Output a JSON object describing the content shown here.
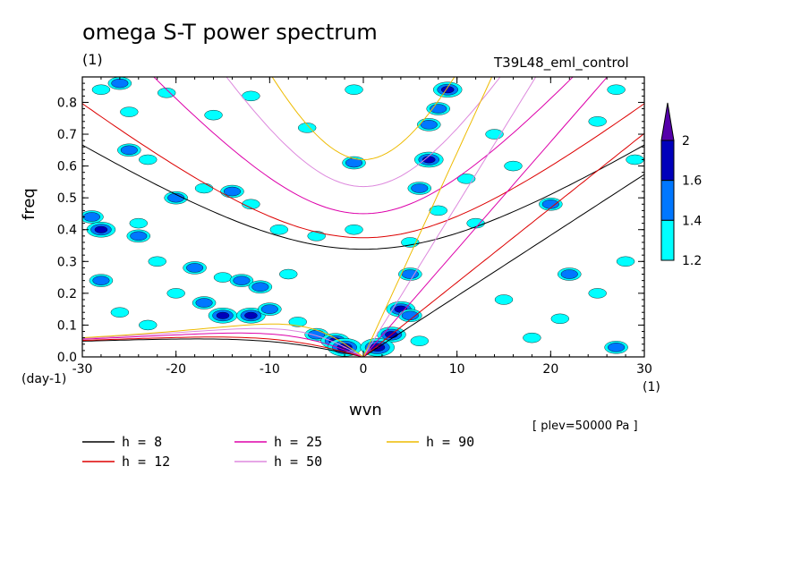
{
  "header": {
    "title": "omega S-T power spectrum",
    "units": "(1)",
    "run_name": "T39L48_eml_control"
  },
  "footer": {
    "xlabel": "wvn",
    "yunits": "(day-1)",
    "xunits": "(1)",
    "level": "[ plev=50000 Pa ]"
  },
  "colors": {
    "h8": "#000000",
    "h12": "#dd0000",
    "h25": "#dd00aa",
    "h50": "#dd88dd",
    "h90": "#eebb00",
    "band1": "#00ffff",
    "band2": "#0077ff",
    "band3": "#0000bb",
    "band4": "#5500aa"
  },
  "chart_data": {
    "type": "heatmap",
    "title": "omega S-T power spectrum",
    "xlabel": "wvn",
    "ylabel": "freq",
    "xlim": [
      -30,
      30
    ],
    "ylim": [
      0,
      0.88
    ],
    "xticks": [
      -30,
      -20,
      -10,
      0,
      10,
      20,
      30
    ],
    "yticks": [
      0.0,
      0.1,
      0.2,
      0.3,
      0.4,
      0.5,
      0.6,
      0.7,
      0.8
    ],
    "colorbar": {
      "levels": [
        1.2,
        1.4,
        1.6,
        2
      ],
      "labels": [
        "1.2",
        "1.4",
        "1.6",
        "2"
      ]
    },
    "dispersion_curves": [
      {
        "label": "h =  8",
        "h": 8,
        "color_key": "h8"
      },
      {
        "label": "h = 12",
        "h": 12,
        "color_key": "h12"
      },
      {
        "label": "h = 25",
        "h": 25,
        "color_key": "h25"
      },
      {
        "label": "h = 50",
        "h": 50,
        "color_key": "h50"
      },
      {
        "label": "h = 90",
        "h": 90,
        "color_key": "h90"
      }
    ],
    "blobs": [
      {
        "x": -28,
        "y": 0.84,
        "level": 1
      },
      {
        "x": -26,
        "y": 0.86,
        "level": 2
      },
      {
        "x": -25,
        "y": 0.65,
        "level": 2
      },
      {
        "x": -23,
        "y": 0.62,
        "level": 1
      },
      {
        "x": -29,
        "y": 0.44,
        "level": 2
      },
      {
        "x": -28,
        "y": 0.4,
        "level": 3
      },
      {
        "x": -24,
        "y": 0.42,
        "level": 1
      },
      {
        "x": -20,
        "y": 0.5,
        "level": 2
      },
      {
        "x": -17,
        "y": 0.53,
        "level": 1
      },
      {
        "x": -14,
        "y": 0.52,
        "level": 2
      },
      {
        "x": -12,
        "y": 0.48,
        "level": 1
      },
      {
        "x": -9,
        "y": 0.4,
        "level": 1
      },
      {
        "x": -5,
        "y": 0.38,
        "level": 1
      },
      {
        "x": -24,
        "y": 0.38,
        "level": 2
      },
      {
        "x": -22,
        "y": 0.3,
        "level": 1
      },
      {
        "x": -18,
        "y": 0.28,
        "level": 2
      },
      {
        "x": -15,
        "y": 0.25,
        "level": 1
      },
      {
        "x": -13,
        "y": 0.24,
        "level": 2
      },
      {
        "x": -11,
        "y": 0.22,
        "level": 2
      },
      {
        "x": -8,
        "y": 0.26,
        "level": 1
      },
      {
        "x": -20,
        "y": 0.2,
        "level": 1
      },
      {
        "x": -17,
        "y": 0.17,
        "level": 2
      },
      {
        "x": -15,
        "y": 0.13,
        "level": 3
      },
      {
        "x": -12,
        "y": 0.13,
        "level": 3
      },
      {
        "x": -10,
        "y": 0.15,
        "level": 2
      },
      {
        "x": -7,
        "y": 0.11,
        "level": 1
      },
      {
        "x": -5,
        "y": 0.07,
        "level": 2
      },
      {
        "x": -3,
        "y": 0.05,
        "level": 3
      },
      {
        "x": -2,
        "y": 0.03,
        "level": 4
      },
      {
        "x": -26,
        "y": 0.14,
        "level": 1
      },
      {
        "x": -28,
        "y": 0.24,
        "level": 2
      },
      {
        "x": -23,
        "y": 0.1,
        "level": 1
      },
      {
        "x": -6,
        "y": 0.72,
        "level": 1
      },
      {
        "x": -1,
        "y": 0.84,
        "level": 1
      },
      {
        "x": -1,
        "y": 0.61,
        "level": 2
      },
      {
        "x": -1,
        "y": 0.4,
        "level": 1
      },
      {
        "x": -12,
        "y": 0.82,
        "level": 1
      },
      {
        "x": -16,
        "y": 0.76,
        "level": 1
      },
      {
        "x": -21,
        "y": 0.83,
        "level": 1
      },
      {
        "x": -25,
        "y": 0.77,
        "level": 1
      },
      {
        "x": 6,
        "y": 0.53,
        "level": 2
      },
      {
        "x": 7,
        "y": 0.62,
        "level": 3
      },
      {
        "x": 7,
        "y": 0.73,
        "level": 2
      },
      {
        "x": 8,
        "y": 0.78,
        "level": 2
      },
      {
        "x": 9,
        "y": 0.84,
        "level": 3
      },
      {
        "x": 5,
        "y": 0.36,
        "level": 1
      },
      {
        "x": 5,
        "y": 0.26,
        "level": 2
      },
      {
        "x": 4,
        "y": 0.15,
        "level": 3
      },
      {
        "x": 5,
        "y": 0.13,
        "level": 2
      },
      {
        "x": 3,
        "y": 0.07,
        "level": 3
      },
      {
        "x": 1.5,
        "y": 0.03,
        "level": 4
      },
      {
        "x": 6,
        "y": 0.05,
        "level": 1
      },
      {
        "x": 8,
        "y": 0.46,
        "level": 1
      },
      {
        "x": 11,
        "y": 0.56,
        "level": 1
      },
      {
        "x": 12,
        "y": 0.42,
        "level": 1
      },
      {
        "x": 14,
        "y": 0.7,
        "level": 1
      },
      {
        "x": 16,
        "y": 0.6,
        "level": 1
      },
      {
        "x": 20,
        "y": 0.48,
        "level": 2
      },
      {
        "x": 25,
        "y": 0.74,
        "level": 1
      },
      {
        "x": 27,
        "y": 0.84,
        "level": 1
      },
      {
        "x": 29,
        "y": 0.62,
        "level": 1
      },
      {
        "x": 22,
        "y": 0.26,
        "level": 2
      },
      {
        "x": 25,
        "y": 0.2,
        "level": 1
      },
      {
        "x": 28,
        "y": 0.3,
        "level": 1
      },
      {
        "x": 18,
        "y": 0.06,
        "level": 1
      },
      {
        "x": 27,
        "y": 0.03,
        "level": 2
      },
      {
        "x": 21,
        "y": 0.12,
        "level": 1
      },
      {
        "x": 15,
        "y": 0.18,
        "level": 1
      }
    ]
  }
}
